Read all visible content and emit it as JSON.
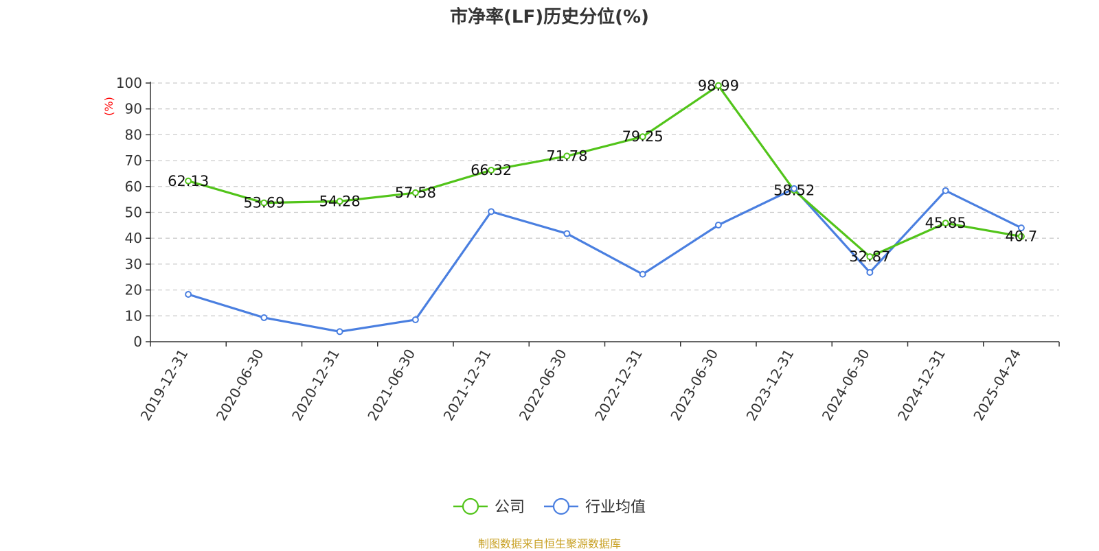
{
  "chart_data": {
    "type": "line",
    "title": "市净率(LF)历史分位(%)",
    "ylabel": "(%)",
    "xlabel": "",
    "ylim": [
      0,
      100
    ],
    "yticks": [
      0,
      10,
      20,
      30,
      40,
      50,
      60,
      70,
      80,
      90,
      100
    ],
    "grid": true,
    "legend_position": "bottom",
    "categories": [
      "2019-12-31",
      "2020-06-30",
      "2020-12-31",
      "2021-06-30",
      "2021-12-31",
      "2022-06-30",
      "2022-12-31",
      "2023-06-30",
      "2023-12-31",
      "2024-06-30",
      "2024-12-31",
      "2025-04-24"
    ],
    "series": [
      {
        "name": "公司",
        "color": "#52c41a",
        "values": [
          62.13,
          53.69,
          54.28,
          57.58,
          66.32,
          71.78,
          79.25,
          98.99,
          58.52,
          32.87,
          45.85,
          40.7
        ],
        "labels": [
          "62.13",
          "53.69",
          "54.28",
          "57.58",
          "66.32",
          "71.78",
          "79.25",
          "98.99",
          "58.52",
          "32.87",
          "45.85",
          "40.7"
        ]
      },
      {
        "name": "行业均值",
        "color": "#4a7fe0",
        "values": [
          18.3,
          9.3,
          3.9,
          8.5,
          50.3,
          41.8,
          26.1,
          45.1,
          59.2,
          26.8,
          58.4,
          44.0
        ]
      }
    ],
    "source": "制图数据来自恒生聚源数据库",
    "colors": {
      "ylabel": "#ff0000",
      "source": "#c9a227",
      "axis": "#333333",
      "grid": "#cccccc"
    }
  }
}
